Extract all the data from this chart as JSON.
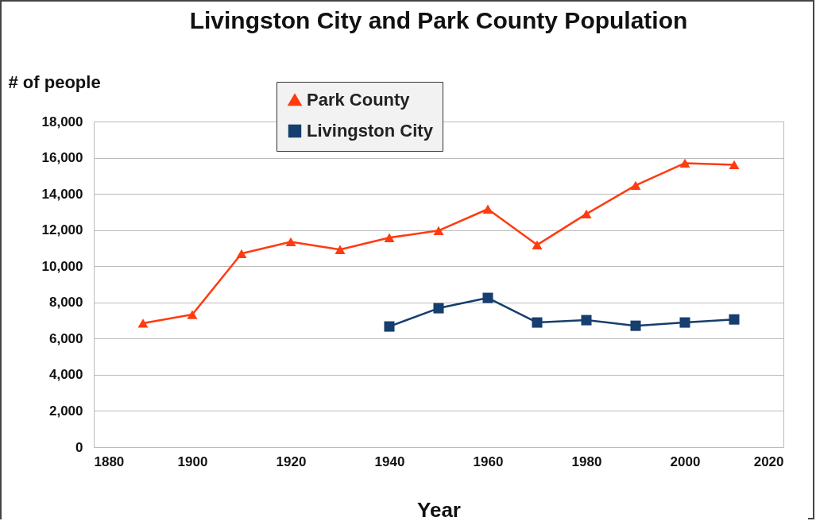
{
  "chart_data": {
    "type": "line",
    "title": "Livingston City and Park County Population",
    "xlabel": "Year",
    "ylabel": "# of people",
    "x": [
      1890,
      1900,
      1910,
      1920,
      1930,
      1940,
      1950,
      1960,
      1970,
      1980,
      1990,
      2000,
      2010
    ],
    "series": [
      {
        "name": "Park County",
        "color": "#ff3b0f",
        "marker": "triangle",
        "values": [
          6850,
          7330,
          10700,
          11350,
          10920,
          11580,
          11970,
          13160,
          11180,
          12890,
          14470,
          15700,
          15610
        ]
      },
      {
        "name": "Livingston City",
        "color": "#163e6e",
        "marker": "square",
        "values": [
          null,
          null,
          null,
          null,
          null,
          6670,
          7680,
          8250,
          6890,
          7020,
          6710,
          6890,
          7060
        ]
      }
    ],
    "xlim": [
      1880,
      2020
    ],
    "xticks": [
      1880,
      1900,
      1920,
      1940,
      1960,
      1980,
      2000,
      2020
    ],
    "ylim": [
      0,
      18000
    ],
    "yticks": [
      0,
      {
        "value": 2000,
        "label": "2,000"
      },
      {
        "value": 4000,
        "label": "4,000"
      },
      {
        "value": 6000,
        "label": "6,000"
      },
      {
        "value": 8000,
        "label": "8,000"
      },
      {
        "value": 10000,
        "label": "10,000"
      },
      {
        "value": 12000,
        "label": "12,000"
      },
      {
        "value": 14000,
        "label": "14,000"
      },
      {
        "value": 16000,
        "label": "16,000"
      },
      {
        "value": 18000,
        "label": "18,000"
      }
    ],
    "grid": "y",
    "legend": "top",
    "line_style": "solid"
  }
}
